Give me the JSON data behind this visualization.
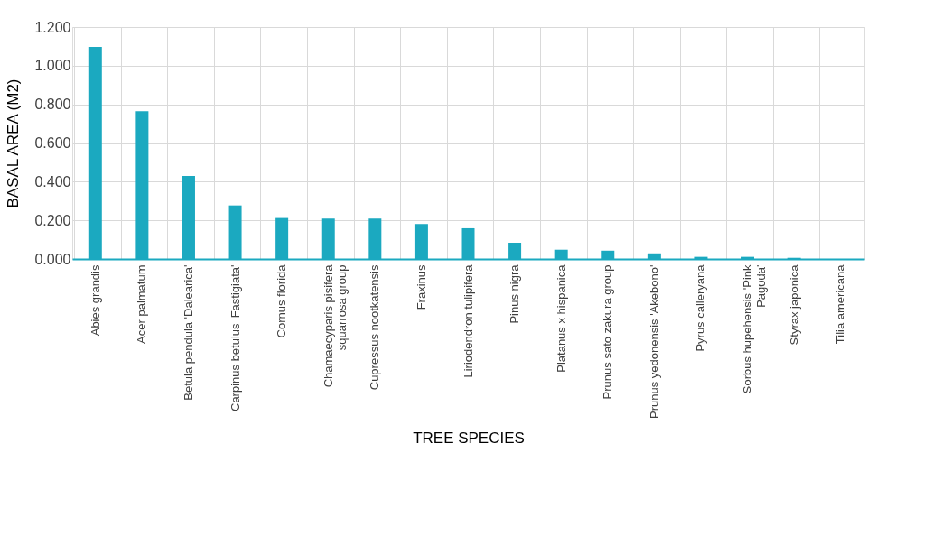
{
  "chart_data": {
    "type": "bar",
    "xlabel": "TREE SPECIES",
    "ylabel": "BASAL AREA (M2)",
    "categories": [
      "Abies grandis",
      "Acer palmatum",
      "Betula pendula 'Dalearica'",
      "Carpinus betulus 'Fastigiata'",
      "Cornus florida",
      "Chamaecyparis pisifera squarrosa group",
      "Cupressus nootkatensis",
      "Fraxinus",
      "Liriodendron tulipifera",
      "Pinus nigra",
      "Platanus x hispanica",
      "Prunus sato zakura group",
      "Prunus yedonensis 'Akebono'",
      "Pyrus calleryana",
      "Sorbus hupehensis 'Pink Pagoda'",
      "Styrax japonica",
      "Tilia americana"
    ],
    "values": [
      1.097,
      0.765,
      0.43,
      0.277,
      0.212,
      0.209,
      0.209,
      0.181,
      0.159,
      0.084,
      0.048,
      0.043,
      0.029,
      0.011,
      0.011,
      0.006,
      0.0
    ],
    "color": "#1ba9c0",
    "ylim": [
      0,
      1.2
    ],
    "yticks": [
      {
        "value": 0,
        "label": "0.000"
      },
      {
        "value": 0.2,
        "label": "0.200"
      },
      {
        "value": 0.4,
        "label": "0.400"
      },
      {
        "value": 0.6,
        "label": "0.600"
      },
      {
        "value": 0.8,
        "label": "0.800"
      },
      {
        "value": 1.0,
        "label": "1.000"
      },
      {
        "value": 1.2,
        "label": "1.200"
      }
    ],
    "grid": true
  }
}
